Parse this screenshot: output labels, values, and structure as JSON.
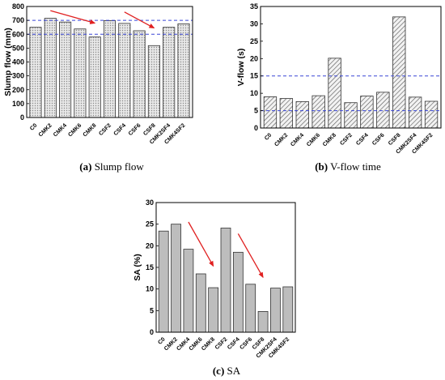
{
  "chart_data": [
    {
      "type": "bar",
      "id": "a",
      "caption_letter": "(a)",
      "caption_text": "Slump flow",
      "ylabel": "Slump flow (mm)",
      "ylim": [
        0,
        800
      ],
      "yticks": [
        0,
        100,
        200,
        300,
        400,
        500,
        600,
        700,
        800
      ],
      "categories": [
        "C0",
        "CMK2",
        "CMK4",
        "CMK6",
        "CMK8",
        "CSF2",
        "CSF4",
        "CSF6",
        "CSF8",
        "CMK2SF4",
        "CMK4SF2"
      ],
      "values": [
        650,
        715,
        688,
        638,
        580,
        698,
        678,
        625,
        518,
        650,
        675
      ],
      "reference_lines": [
        600,
        700
      ],
      "bar_fill": "dots",
      "annotations": [
        {
          "kind": "arrow",
          "from": {
            "category": "CMK2",
            "value": 770
          },
          "to": {
            "category": "CMK8",
            "value": 680
          }
        },
        {
          "kind": "arrow",
          "from": {
            "category": "CSF4",
            "value": 760
          },
          "to": {
            "category": "CSF8",
            "value": 645
          }
        }
      ]
    },
    {
      "type": "bar",
      "id": "b",
      "caption_letter": "(b)",
      "caption_text": "V-flow time",
      "ylabel": "V-flow (s)",
      "ylim": [
        0,
        35
      ],
      "yticks": [
        0,
        5,
        10,
        15,
        20,
        25,
        30,
        35
      ],
      "categories": [
        "C0",
        "CMK2",
        "CMK4",
        "CMK6",
        "CMK8",
        "CSF2",
        "CSF4",
        "CSF6",
        "CSF8",
        "CMK2SF4",
        "CMK4SF2"
      ],
      "values": [
        9.0,
        8.5,
        7.6,
        9.3,
        20.1,
        7.3,
        9.2,
        10.3,
        32.0,
        8.9,
        7.7
      ],
      "reference_lines": [
        5,
        15
      ],
      "bar_fill": "hatch"
    },
    {
      "type": "bar",
      "id": "c",
      "caption_letter": "(c)",
      "caption_text": "SA",
      "ylabel": "SA (%)",
      "ylim": [
        0,
        30
      ],
      "yticks": [
        0,
        5,
        10,
        15,
        20,
        25,
        30
      ],
      "categories": [
        "C0",
        "CMK2",
        "CMK4",
        "CMK6",
        "CMK8",
        "CSF2",
        "CSF4",
        "CSF6",
        "CSF8",
        "CMK2SF4",
        "CMK4SF2"
      ],
      "values": [
        23.4,
        25.0,
        19.2,
        13.5,
        10.3,
        24.1,
        18.5,
        11.1,
        4.8,
        10.2,
        10.5
      ],
      "bar_fill": "solid-gray",
      "annotations": [
        {
          "kind": "arrow",
          "from": {
            "category": "CMK4",
            "value": 25.5
          },
          "to": {
            "category": "CMK8",
            "value": 15.3
          }
        },
        {
          "kind": "arrow",
          "from": {
            "category": "CSF4",
            "value": 22.8
          },
          "to": {
            "category": "CSF8",
            "value": 12.7
          }
        }
      ]
    }
  ],
  "colors": {
    "bar_gray": "#bdbdbd",
    "bar_dot": "#d9d9d9",
    "ref_line": "#3a46d6",
    "arrow": "#e02020",
    "axis": "#000000"
  }
}
